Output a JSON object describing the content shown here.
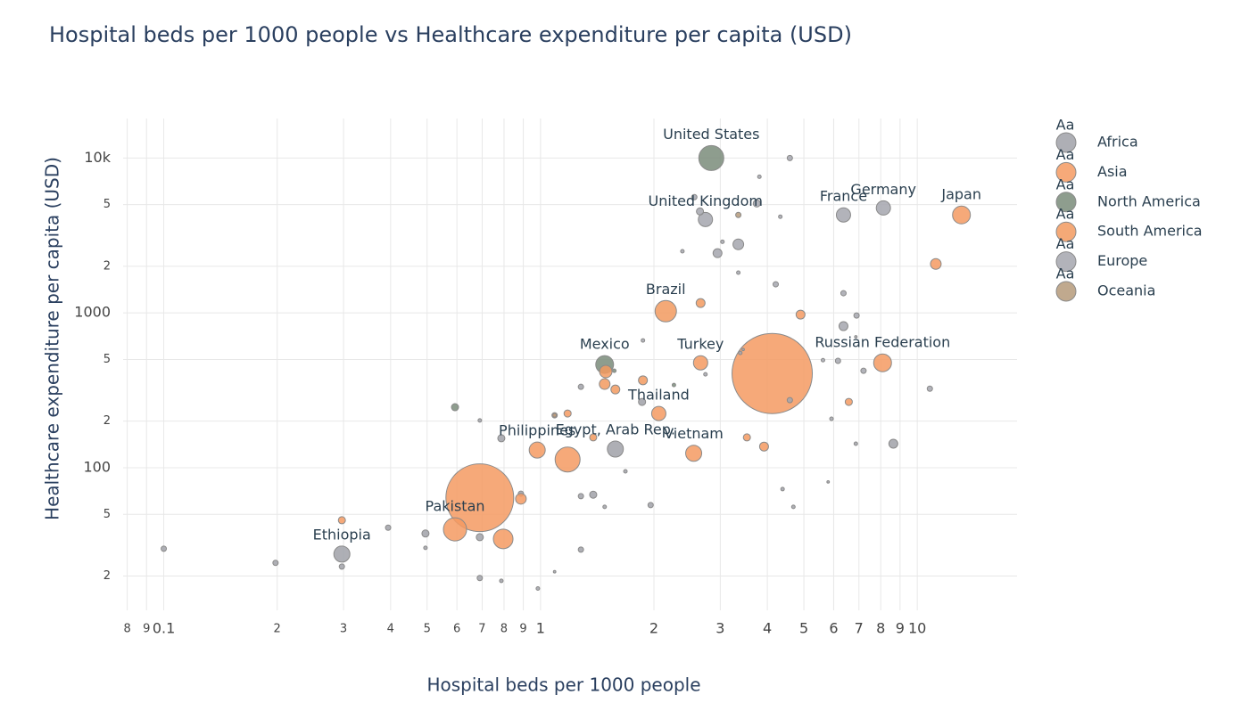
{
  "chart_data": {
    "type": "scatter",
    "title": "Hospital beds per 1000 people vs Healthcare expenditure per capita (USD)",
    "x_label": "Hospital beds per 1000 people",
    "y_label": "Healthcare expenditure per capita (USD)",
    "xlog": true,
    "ylog": true,
    "grid": true,
    "legend_position": "right",
    "legend_symbol": "Aa",
    "xlim": [
      0.078,
      18.4
    ],
    "ylim": [
      12,
      18000
    ],
    "xticks": [
      {
        "value": 0.08,
        "label": "8"
      },
      {
        "value": 0.09,
        "label": "9"
      },
      0.1,
      {
        "value": 0.2,
        "label": "2"
      },
      {
        "value": 0.3,
        "label": "3"
      },
      {
        "value": 0.4,
        "label": "4"
      },
      {
        "value": 0.5,
        "label": "5"
      },
      {
        "value": 0.6,
        "label": "6"
      },
      {
        "value": 0.7,
        "label": "7"
      },
      {
        "value": 0.8,
        "label": "8"
      },
      {
        "value": 0.9,
        "label": "9"
      },
      1,
      2,
      3,
      4,
      5,
      6,
      7,
      8,
      9,
      10
    ],
    "yticks": [
      {
        "value": 20,
        "label": "2"
      },
      {
        "value": 50,
        "label": "5"
      },
      100,
      {
        "value": 200,
        "label": "2"
      },
      {
        "value": 500,
        "label": "5"
      },
      1000,
      {
        "value": 2000,
        "label": "2"
      },
      {
        "value": 5000,
        "label": "5"
      },
      {
        "value": 10000,
        "label": "10k"
      }
    ],
    "series": [
      {
        "name": "Africa",
        "color": "#a0a1a8",
        "x": [
          0.297,
          1.58,
          0.1,
          0.198,
          0.297,
          0.394,
          0.495,
          0.495,
          0.69,
          0.69,
          0.787,
          0.984,
          1.09,
          1.28,
          1.28,
          1.38,
          1.48,
          1.68,
          1.96,
          0.887,
          0.787,
          0.69,
          1.86,
          4.39,
          4.69,
          5.8,
          8.64,
          6.87,
          1.28
        ],
        "values": [
          27.7,
          132,
          30,
          24.3,
          23,
          41,
          37.6,
          30.4,
          35.6,
          19.4,
          18.6,
          16.6,
          21.3,
          29.6,
          65.5,
          67,
          55.9,
          94.8,
          57.4,
          68,
          155,
          202,
          266,
          72.8,
          55.9,
          81,
          143,
          143,
          333
        ],
        "sizes": [
          81,
          81,
          9,
          9,
          9,
          9,
          16,
          4,
          16,
          9,
          4,
          4,
          2,
          9,
          9,
          16,
          4,
          4,
          9,
          9,
          16,
          4,
          16,
          4,
          4,
          2,
          25,
          4,
          9
        ],
        "labels": [
          "Ethiopia",
          "Egypt, Arab Rep.",
          null,
          null,
          null,
          null,
          null,
          null,
          null,
          null,
          null,
          null,
          null,
          null,
          null,
          null,
          null,
          null,
          null,
          null,
          null,
          null,
          null,
          null,
          null,
          null,
          null,
          null,
          null
        ]
      },
      {
        "name": "Asia",
        "color": "#f59a62",
        "x": [
          13.1,
          2.66,
          8.09,
          2.06,
          2.55,
          0.98,
          0.593,
          4.12,
          0.69,
          0.796,
          1.18,
          4.9,
          11.2,
          3.53,
          3.92,
          6.58,
          0.887,
          0.297,
          1.18,
          1.09
        ],
        "values": [
          4290,
          476,
          476,
          224,
          124,
          130,
          40,
          406,
          64,
          34.7,
          113,
          975,
          2070,
          157,
          137,
          266,
          63,
          45.8,
          224,
          218
        ],
        "sizes": [
          100,
          64,
          100,
          64,
          81,
          81,
          169,
          2025,
          1444,
          121,
          196,
          25,
          36,
          16,
          25,
          16,
          36,
          16,
          16,
          9
        ],
        "labels": [
          "Japan",
          "Turkey",
          "Russian Federation",
          "Thailand",
          "Vietnam",
          "Philippines",
          "Pakistan",
          null,
          null,
          null,
          null,
          null,
          null,
          null,
          null,
          null,
          null,
          null,
          null,
          null
        ]
      },
      {
        "name": "North America",
        "color": "#7a8c7a",
        "x": [
          2.84,
          1.48,
          0.593,
          1.57,
          2.26
        ],
        "values": [
          10000,
          464,
          246,
          423,
          342
        ],
        "sizes": [
          196,
          100,
          16,
          4,
          4
        ],
        "labels": [
          "United States",
          "Mexico",
          null,
          null,
          null
        ]
      },
      {
        "name": "South America",
        "color": "#f29a5f",
        "x": [
          2.15,
          1.49,
          1.48,
          1.58,
          1.87,
          1.38,
          2.66
        ],
        "values": [
          1025,
          418,
          347,
          320,
          367,
          157,
          1157
        ],
        "sizes": [
          144,
          49,
          36,
          25,
          25,
          16,
          25
        ],
        "labels": [
          "Brazil",
          null,
          null,
          null,
          null,
          null,
          null
        ]
      },
      {
        "name": "Europe",
        "color": "#a4a6ae",
        "x": [
          2.74,
          6.37,
          8.13,
          2.56,
          2.65,
          3.35,
          2.95,
          3.75,
          4.59,
          3.81,
          4.33,
          6.37,
          6.37,
          6.9,
          4.21,
          3.35,
          1.87,
          3.39,
          6.16,
          5.62,
          7.2,
          10.8,
          4.59,
          2.38,
          3.04,
          3.45,
          5.92,
          6.87,
          2.74
        ],
        "values": [
          4010,
          4290,
          4760,
          5590,
          4520,
          2770,
          2430,
          5090,
          10000,
          7570,
          4180,
          1340,
          821,
          962,
          1530,
          1820,
          664,
          551,
          490,
          495,
          423,
          324,
          273,
          2500,
          2880,
          580,
          207,
          700,
          401
        ],
        "sizes": [
          64,
          64,
          64,
          9,
          16,
          36,
          25,
          16,
          9,
          4,
          4,
          9,
          25,
          9,
          9,
          4,
          4,
          4,
          9,
          4,
          9,
          9,
          9,
          4,
          4,
          2,
          4,
          2,
          4
        ],
        "labels": [
          "United Kingdom",
          "France",
          "Germany",
          null,
          null,
          null,
          null,
          null,
          null,
          null,
          null,
          null,
          null,
          null,
          null,
          null,
          null,
          null,
          null,
          null,
          null,
          null,
          null,
          null,
          null,
          null,
          null,
          null,
          null
        ]
      },
      {
        "name": "Oceania",
        "color": "#b59a7a",
        "x": [
          3.35,
          1.09
        ],
        "values": [
          4290,
          218
        ],
        "sizes": [
          9,
          4
        ],
        "labels": [
          null,
          null
        ]
      }
    ]
  }
}
